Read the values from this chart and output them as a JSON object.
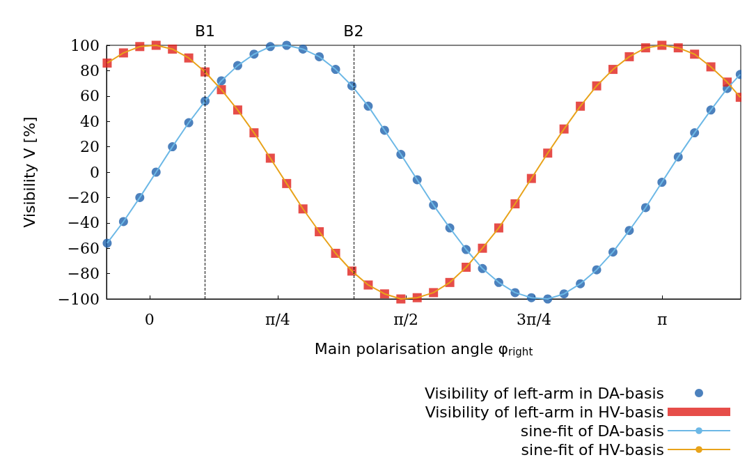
{
  "chart_data": {
    "type": "scatter",
    "xlabel": "Main polarisation angle φ$_{right}$",
    "ylabel": "Visibility V [%]",
    "xlim": [
      -0.264,
      3.623
    ],
    "xticks": [
      {
        "value": 0,
        "label": "0"
      },
      {
        "value": 0.785,
        "label": "π/4"
      },
      {
        "value": 1.571,
        "label": "π/2"
      },
      {
        "value": 2.356,
        "label": "3π/4"
      },
      {
        "value": 3.142,
        "label": "π"
      }
    ],
    "ylim": [
      -100,
      100
    ],
    "yticks": [
      {
        "value": -100,
        "label": "−100"
      },
      {
        "value": -80,
        "label": "−80"
      },
      {
        "value": -60,
        "label": "−60"
      },
      {
        "value": -40,
        "label": "−40"
      },
      {
        "value": -20,
        "label": "−20"
      },
      0,
      20,
      40,
      60,
      80,
      100
    ],
    "x": [
      -0.26,
      -0.16,
      -0.06,
      0.04,
      0.14,
      0.24,
      0.34,
      0.44,
      0.54,
      0.64,
      0.74,
      0.84,
      0.94,
      1.04,
      1.14,
      1.24,
      1.34,
      1.44,
      1.54,
      1.64,
      1.74,
      1.84,
      1.94,
      2.04,
      2.14,
      2.24,
      2.34,
      2.44,
      2.54,
      2.64,
      2.74,
      2.84,
      2.94,
      3.04,
      3.14,
      3.24,
      3.34,
      3.44,
      3.54,
      3.62
    ],
    "series": [
      {
        "name": "Visibility of left-arm in DA-basis",
        "color": "#1f62ad",
        "marker": "circle",
        "values": [
          -56,
          -39,
          -20,
          0,
          20,
          39,
          56,
          72,
          84,
          93,
          99,
          100,
          97,
          91,
          81,
          68,
          52,
          33,
          14,
          -6,
          -26,
          -44,
          -61,
          -76,
          -87,
          -95,
          -99,
          -100,
          -96,
          -88,
          -77,
          -63,
          -46,
          -28,
          -8,
          12,
          31,
          49,
          66,
          77
        ]
      },
      {
        "name": "Visibility of left-arm in HV-basis",
        "color": "#e0201b",
        "marker": "square",
        "values": [
          86,
          94,
          99,
          100,
          97,
          90,
          79,
          65,
          49,
          31,
          11,
          -9,
          -29,
          -47,
          -64,
          -78,
          -89,
          -96,
          -100,
          -99,
          -95,
          -87,
          -75,
          -60,
          -44,
          -25,
          -5,
          15,
          34,
          52,
          68,
          81,
          91,
          98,
          100,
          98,
          93,
          83,
          71,
          59
        ]
      },
      {
        "name": "sine-fit of DA-basis",
        "type": "line",
        "color": "#6cb8e6",
        "values": [
          -56,
          -39,
          -20,
          0,
          20,
          39,
          56,
          72,
          84,
          93,
          99,
          100,
          97,
          91,
          81,
          68,
          52,
          33,
          14,
          -6,
          -26,
          -44,
          -61,
          -76,
          -87,
          -95,
          -99,
          -100,
          -96,
          -88,
          -77,
          -63,
          -46,
          -28,
          -8,
          12,
          31,
          49,
          66,
          77
        ]
      },
      {
        "name": "sine-fit of HV-basis",
        "type": "line",
        "color": "#e8a31a",
        "values": [
          86,
          94,
          99,
          100,
          97,
          90,
          79,
          65,
          49,
          31,
          11,
          -9,
          -29,
          -47,
          -64,
          -78,
          -89,
          -96,
          -100,
          -99,
          -95,
          -87,
          -75,
          -60,
          -44,
          -25,
          -5,
          15,
          34,
          52,
          68,
          81,
          91,
          98,
          100,
          98,
          93,
          83,
          71,
          59
        ]
      }
    ],
    "ref_lines": [
      {
        "axis": "x",
        "value": 0.335,
        "label": "B1",
        "color": "#000000",
        "line_style": "dashed"
      },
      {
        "axis": "x",
        "value": 1.248,
        "label": "B2",
        "color": "#000000",
        "line_style": "dashed"
      }
    ],
    "legend": "bottom right",
    "grid": false
  }
}
